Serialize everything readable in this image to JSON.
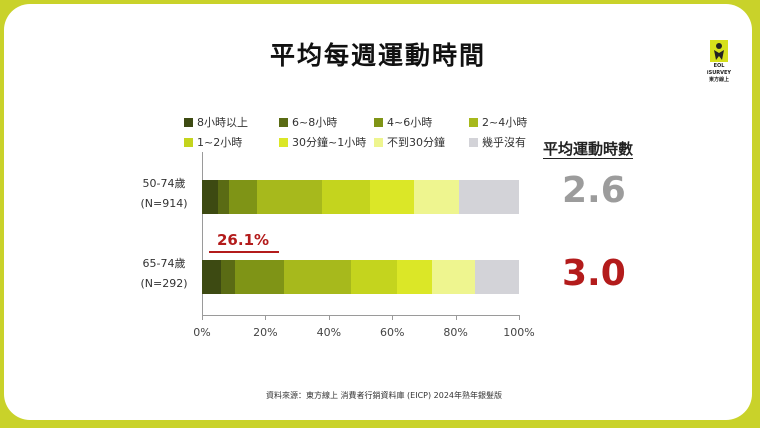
{
  "title": "平均每週運動時間",
  "logo": {
    "line1": "EOL",
    "line2": "iSURVEY",
    "line3": "東方線上"
  },
  "legend": [
    {
      "label": "8小時以上",
      "color": "#3d4a12"
    },
    {
      "label": "6~8小時",
      "color": "#5a6b14"
    },
    {
      "label": "4~6小時",
      "color": "#7f9416"
    },
    {
      "label": "2~4小時",
      "color": "#a7b91c"
    },
    {
      "label": "1~2小時",
      "color": "#c4d41e"
    },
    {
      "label": "30分鐘~1小時",
      "color": "#dbe727"
    },
    {
      "label": "不到30分鐘",
      "color": "#eef58f"
    },
    {
      "label": "幾乎沒有",
      "color": "#d3d3d8"
    }
  ],
  "avg_header": "平均運動時數",
  "chart_data": {
    "type": "bar",
    "orientation": "horizontal",
    "stacked": true,
    "categories": [
      "50-74歲 (N=914)",
      "65-74歲 (N=292)"
    ],
    "series": [
      {
        "name": "8小時以上",
        "values": [
          5.0,
          6.0
        ]
      },
      {
        "name": "6~8小時",
        "values": [
          3.5,
          4.5
        ]
      },
      {
        "name": "4~6小時",
        "values": [
          9.0,
          15.5
        ]
      },
      {
        "name": "2~4小時",
        "values": [
          20.5,
          21.0
        ]
      },
      {
        "name": "1~2小時",
        "values": [
          15.0,
          14.5
        ]
      },
      {
        "name": "30分鐘~1小時",
        "values": [
          14.0,
          11.0
        ]
      },
      {
        "name": "不到30分鐘",
        "values": [
          14.0,
          13.5
        ]
      },
      {
        "name": "幾乎沒有",
        "values": [
          19.0,
          14.0
        ]
      }
    ],
    "xlim": [
      0,
      100
    ],
    "xticks": [
      "0%",
      "20%",
      "40%",
      "60%",
      "80%",
      "100%"
    ],
    "annotation": "26.1%"
  },
  "rows": [
    {
      "label1": "50-74歲",
      "label2": "(N=914)",
      "avg": "2.6",
      "avg_color": "#9c9c9c"
    },
    {
      "label1": "65-74歲",
      "label2": "(N=292)",
      "avg": "3.0",
      "avg_color": "#b31b1b"
    }
  ],
  "source": "資料來源：東方線上 消費者行銷資料庫 (EICP) 2024年熟年銀髮版"
}
